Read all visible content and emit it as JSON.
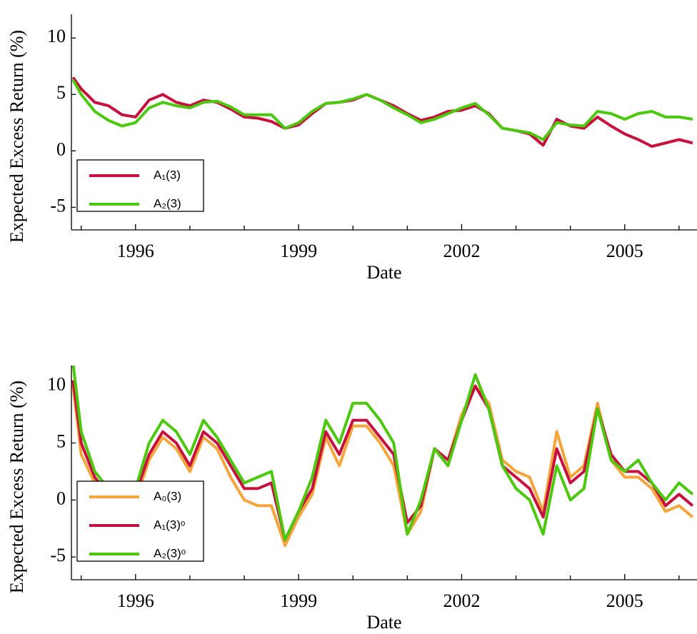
{
  "chart_data": [
    {
      "type": "line",
      "xlabel": "Date",
      "ylabel": "Expected Excess Return (%)",
      "x": [
        1994.85,
        1995,
        1995.25,
        1995.5,
        1995.75,
        1996,
        1996.25,
        1996.5,
        1996.75,
        1997,
        1997.25,
        1997.5,
        1997.75,
        1998,
        1998.25,
        1998.5,
        1998.75,
        1999,
        1999.25,
        1999.5,
        1999.75,
        2000,
        2000.25,
        2000.5,
        2000.75,
        2001,
        2001.25,
        2001.5,
        2001.75,
        2002,
        2002.25,
        2002.5,
        2002.75,
        2003,
        2003.25,
        2003.5,
        2003.75,
        2004,
        2004.25,
        2004.5,
        2004.75,
        2005,
        2005.25,
        2005.5,
        2005.75,
        2006,
        2006.25
      ],
      "series": [
        {
          "name": "A₁(3)",
          "color": "#c8103e",
          "values": [
            6.5,
            5.5,
            4.3,
            4.0,
            3.2,
            3.0,
            4.5,
            5.0,
            4.3,
            4.0,
            4.5,
            4.3,
            3.7,
            3.0,
            2.9,
            2.6,
            2.0,
            2.3,
            3.3,
            4.2,
            4.3,
            4.5,
            5.0,
            4.5,
            4.0,
            3.3,
            2.7,
            3.0,
            3.5,
            3.6,
            4.0,
            3.3,
            2.0,
            1.8,
            1.5,
            0.5,
            2.8,
            2.2,
            2.0,
            3.0,
            2.2,
            1.5,
            1.0,
            0.4,
            0.7,
            1.0,
            0.7
          ]
        },
        {
          "name": "A₂(3)",
          "color": "#4cc80e",
          "values": [
            6.3,
            5.0,
            3.5,
            2.7,
            2.2,
            2.5,
            3.8,
            4.3,
            4.0,
            3.8,
            4.3,
            4.4,
            3.9,
            3.2,
            3.2,
            3.2,
            2.0,
            2.5,
            3.5,
            4.2,
            4.3,
            4.6,
            5.0,
            4.5,
            3.8,
            3.2,
            2.5,
            2.8,
            3.3,
            3.8,
            4.2,
            3.2,
            2.0,
            1.8,
            1.6,
            1.0,
            2.5,
            2.3,
            2.2,
            3.5,
            3.3,
            2.8,
            3.3,
            3.5,
            3.0,
            3.0,
            2.8
          ]
        }
      ],
      "xlim": [
        1994.82,
        2006.33
      ],
      "ylim": [
        -7,
        12.1
      ],
      "xticks": [
        1996,
        1999,
        2002,
        2005
      ],
      "xminorticks": [
        1995,
        1997,
        1998,
        2000,
        2001,
        2003,
        2004,
        2006
      ],
      "yticks": [
        -5,
        0,
        5,
        10
      ],
      "legend": "lower left"
    },
    {
      "type": "line",
      "xlabel": "Date",
      "ylabel": "Expected Excess Return (%)",
      "x": [
        1994.85,
        1995,
        1995.25,
        1995.5,
        1995.75,
        1996,
        1996.25,
        1996.5,
        1996.75,
        1997,
        1997.25,
        1997.5,
        1997.75,
        1998,
        1998.25,
        1998.5,
        1998.75,
        1999,
        1999.25,
        1999.5,
        1999.75,
        2000,
        2000.25,
        2000.5,
        2000.75,
        2001,
        2001.25,
        2001.5,
        2001.75,
        2002,
        2002.25,
        2002.5,
        2002.75,
        2003,
        2003.25,
        2003.5,
        2003.75,
        2004,
        2004.25,
        2004.5,
        2004.75,
        2005,
        2005.25,
        2005.5,
        2005.75,
        2006,
        2006.25
      ],
      "series": [
        {
          "name": "A₀(3)",
          "color": "#f5a53c",
          "values": [
            10,
            4,
            1.5,
            0,
            0,
            0,
            3.5,
            5.5,
            4.5,
            2.5,
            5.5,
            4.5,
            2,
            0,
            -0.5,
            -0.5,
            -4,
            -1.5,
            0.5,
            5.5,
            3,
            6.5,
            6.5,
            5,
            3,
            -3,
            -1,
            4.5,
            3.5,
            7.5,
            10,
            8.5,
            3.5,
            2.5,
            2,
            -1,
            6,
            2,
            3,
            8.5,
            3.5,
            2,
            2,
            1,
            -1,
            -0.5,
            -1.5
          ]
        },
        {
          "name": "A₁(3)ᵒ",
          "color": "#c8103e",
          "values": [
            10.5,
            5,
            2,
            0.5,
            0.5,
            0.5,
            4,
            6,
            5,
            3,
            6,
            5,
            3,
            1,
            1,
            1.5,
            -3.5,
            -1,
            1,
            6,
            4,
            7,
            7,
            5.5,
            4,
            -2,
            -0.5,
            4.5,
            3.5,
            7,
            10,
            8,
            3,
            2,
            1,
            -1.5,
            4.5,
            1.5,
            2.5,
            8,
            4,
            2.5,
            2.5,
            1.5,
            -0.5,
            0.5,
            -0.5
          ]
        },
        {
          "name": "A₂(3)ᵒ",
          "color": "#4cc80e",
          "values": [
            12,
            6,
            2.5,
            1,
            1.5,
            1,
            5,
            7,
            6,
            4,
            7,
            5.5,
            3.5,
            1.5,
            2,
            2.5,
            -3.5,
            -1,
            2,
            7,
            5,
            8.5,
            8.5,
            7,
            5,
            -3,
            0,
            4.5,
            3,
            7,
            11,
            8,
            3,
            1,
            0,
            -3,
            3,
            0,
            1,
            8,
            3.5,
            2.5,
            3.5,
            1.5,
            0,
            1.5,
            0.5
          ]
        }
      ],
      "xlim": [
        1994.82,
        2006.33
      ],
      "ylim": [
        -7,
        11.8
      ],
      "xticks": [
        1996,
        1999,
        2002,
        2005
      ],
      "xminorticks": [
        1995,
        1997,
        1998,
        2000,
        2001,
        2003,
        2004,
        2006
      ],
      "yticks": [
        -5,
        0,
        5,
        10
      ],
      "legend": "lower left"
    }
  ]
}
